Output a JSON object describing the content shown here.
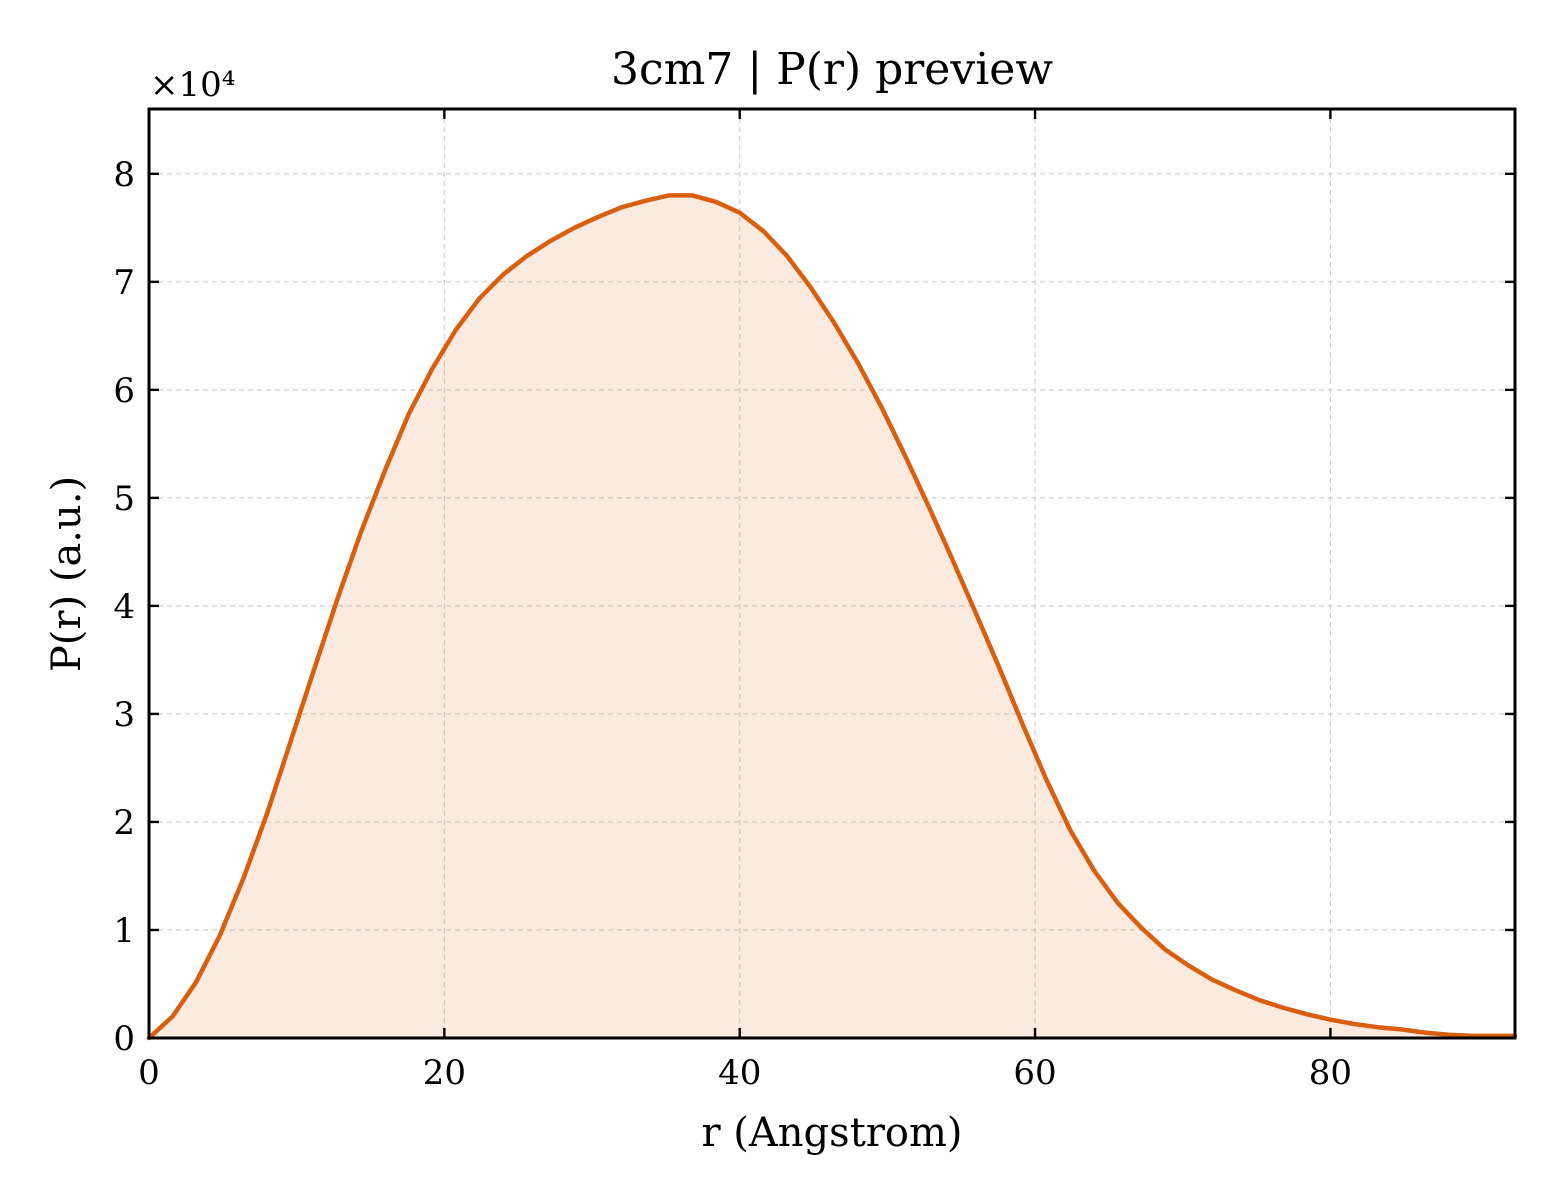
{
  "chart_data": {
    "type": "area",
    "title": "3cm7 | P(r) preview",
    "xlabel": "r (Angstrom)",
    "ylabel": "P(r) (a.u.)",
    "y_multiplier_label": "×10⁴",
    "xlim": [
      0,
      92.5
    ],
    "ylim": [
      0,
      8.6
    ],
    "xticks": [
      0,
      20,
      40,
      60,
      80
    ],
    "yticks": [
      0,
      1,
      2,
      3,
      4,
      5,
      6,
      7,
      8
    ],
    "grid": true,
    "legend": "none",
    "colors": {
      "line": "#d95f0e",
      "fill": "#d95f0e"
    },
    "series": [
      {
        "x": [
          0,
          1.6,
          3.2,
          4.8,
          6.4,
          8.0,
          9.6,
          11.2,
          12.8,
          14.4,
          16.0,
          17.6,
          19.2,
          20.8,
          22.4,
          24.0,
          25.6,
          27.2,
          28.8,
          30.4,
          32.0,
          33.6,
          35.2,
          36.8,
          38.4,
          40.0,
          41.6,
          43.2,
          44.8,
          46.4,
          48.0,
          49.6,
          51.2,
          52.8,
          54.4,
          56.0,
          57.6,
          59.2,
          60.8,
          62.4,
          64.0,
          65.6,
          67.2,
          68.8,
          70.4,
          72.0,
          73.6,
          75.2,
          76.8,
          78.4,
          80.0,
          81.6,
          83.2,
          84.8,
          86.4,
          88.0,
          89.6,
          91.2,
          92.5
        ],
        "y": [
          0,
          0.2,
          0.52,
          0.95,
          1.48,
          2.08,
          2.75,
          3.42,
          4.08,
          4.7,
          5.26,
          5.78,
          6.2,
          6.56,
          6.85,
          7.07,
          7.24,
          7.38,
          7.5,
          7.6,
          7.69,
          7.75,
          7.8,
          7.8,
          7.74,
          7.64,
          7.47,
          7.24,
          6.95,
          6.62,
          6.25,
          5.84,
          5.39,
          4.92,
          4.43,
          3.93,
          3.42,
          2.89,
          2.38,
          1.92,
          1.55,
          1.25,
          1.02,
          0.82,
          0.67,
          0.54,
          0.44,
          0.35,
          0.28,
          0.22,
          0.17,
          0.13,
          0.1,
          0.08,
          0.05,
          0.03,
          0.02,
          0.02,
          0.02
        ]
      }
    ]
  }
}
